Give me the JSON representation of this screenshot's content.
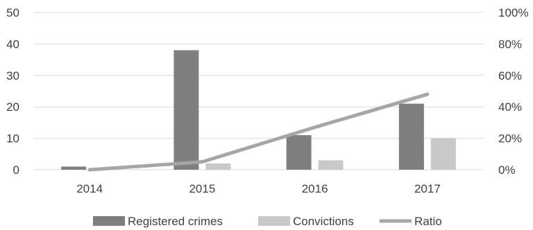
{
  "chart_data": {
    "type": "bar",
    "categories": [
      "2014",
      "2015",
      "2016",
      "2017"
    ],
    "series": [
      {
        "name": "Registered crimes",
        "type": "bar",
        "axis": "left",
        "color": "#7f7f7f",
        "values": [
          1,
          38,
          11,
          21
        ]
      },
      {
        "name": "Convictions",
        "type": "bar",
        "axis": "left",
        "color": "#c9c9c9",
        "values": [
          0,
          2,
          3,
          10
        ]
      },
      {
        "name": "Ratio",
        "type": "line",
        "axis": "right",
        "color": "#a6a6a6",
        "values": [
          0,
          5,
          27,
          48
        ]
      }
    ],
    "left_axis": {
      "range": [
        0,
        50
      ],
      "ticks": [
        "0",
        "10",
        "20",
        "30",
        "40",
        "50"
      ]
    },
    "right_axis": {
      "range": [
        0,
        100
      ],
      "ticks": [
        "0%",
        "20%",
        "40%",
        "60%",
        "80%",
        "100%"
      ]
    },
    "grid": true,
    "legend_position": "bottom"
  }
}
